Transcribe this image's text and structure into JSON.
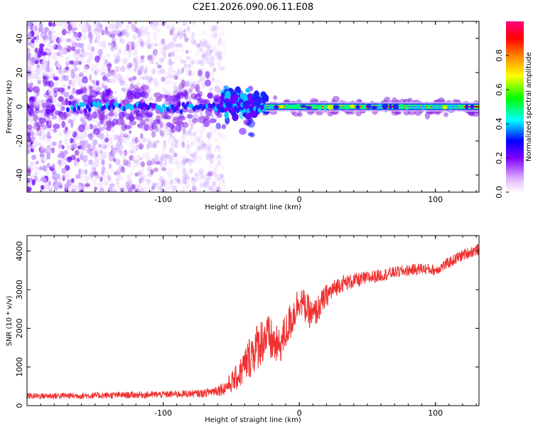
{
  "title": "C2E1.2026.090.06.11.E08",
  "chart_data": [
    {
      "type": "heatmap",
      "xlabel": "Height of straight line (km)",
      "ylabel": "Frequency (Hz)",
      "xlim": [
        -200,
        132
      ],
      "ylim": [
        -50,
        50
      ],
      "xticks": [
        -100,
        0,
        100
      ],
      "yticks": [
        -40,
        -20,
        0,
        20,
        40
      ],
      "colorbar": {
        "label": "Normalized spectral amplitude",
        "range": [
          0,
          1
        ],
        "ticks": [
          "0.0",
          "0.2",
          "0.4",
          "0.6",
          "0.8"
        ],
        "colors": [
          "#ffffff",
          "#a020f0",
          "#0000ff",
          "#00ffff",
          "#00ff00",
          "#ffff00",
          "#ff8000",
          "#ff0000",
          "#ff0080"
        ]
      },
      "features": {
        "noise_region_x": [
          -200,
          -55
        ],
        "tone_frequency_hz": 0,
        "strong_tone_start_km": -25
      }
    },
    {
      "type": "line",
      "xlabel": "Height of straight line (km)",
      "ylabel": "SNR (10 * v/v)",
      "xlim": [
        -200,
        132
      ],
      "ylim": [
        0,
        4400
      ],
      "xticks": [
        -100,
        0,
        100
      ],
      "yticks": [
        0,
        1000,
        2000,
        3000,
        4000
      ],
      "color": "#f03030",
      "series_trend": {
        "x": [
          -200,
          -150,
          -100,
          -70,
          -55,
          -45,
          -35,
          -25,
          -15,
          -5,
          0,
          10,
          20,
          30,
          50,
          70,
          90,
          100,
          120,
          132
        ],
        "y": [
          250,
          260,
          290,
          320,
          450,
          750,
          1350,
          1800,
          1500,
          2300,
          2750,
          2300,
          2850,
          3150,
          3300,
          3450,
          3550,
          3500,
          3900,
          4050
        ],
        "jitter": [
          80,
          85,
          90,
          100,
          180,
          350,
          600,
          650,
          500,
          500,
          420,
          400,
          300,
          220,
          180,
          150,
          150,
          140,
          150,
          150
        ]
      }
    }
  ]
}
